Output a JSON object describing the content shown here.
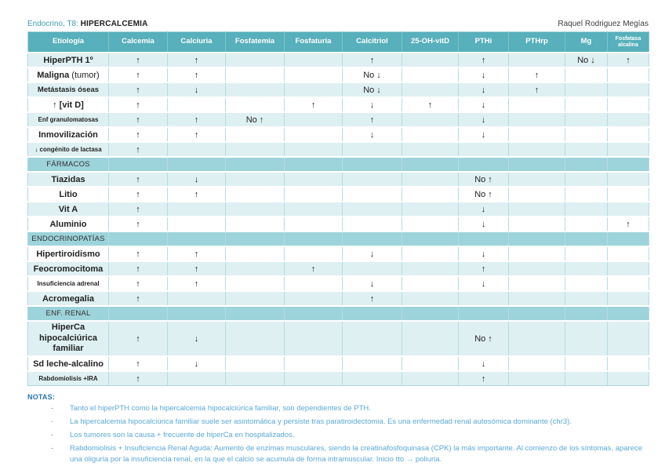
{
  "header": {
    "course": "Endocrino, T8:",
    "topic": "HIPERCALCEMIA",
    "author": "Raquel Rodriguez Megías"
  },
  "table": {
    "columns": [
      {
        "label": "Etiología"
      },
      {
        "label": "Calcemia"
      },
      {
        "label": "Calciuria"
      },
      {
        "label": "Fosfatemia"
      },
      {
        "label": "Fosfaturia"
      },
      {
        "label": "Calcitriol"
      },
      {
        "label": "25-OH-vitD"
      },
      {
        "label": "PTHi"
      },
      {
        "label": "PTHrp"
      },
      {
        "label": "Mg"
      },
      {
        "label": "Fosfatasa alcalina",
        "small": true
      }
    ],
    "rows": [
      {
        "type": "data",
        "label": "HiperPTH 1º",
        "cells": [
          "↑",
          "↑",
          "",
          "",
          "↑",
          "",
          "↑",
          "",
          "No ↓",
          "↑"
        ]
      },
      {
        "type": "data",
        "label": "Maligna",
        "suffix": " (tumor)",
        "cells": [
          "↑",
          "↑",
          "",
          "",
          "No ↓",
          "",
          "↓",
          "↑",
          "",
          ""
        ]
      },
      {
        "type": "data",
        "label": "Metástasis óseas",
        "size": "mid",
        "cells": [
          "↑",
          "↓",
          "",
          "",
          "No ↓",
          "",
          "↓",
          "↑",
          "",
          ""
        ]
      },
      {
        "type": "data",
        "label": "↑ [vit D]",
        "cells": [
          "↑",
          "",
          "",
          "↑",
          "↓",
          "↑",
          "↓",
          "",
          "",
          ""
        ]
      },
      {
        "type": "data",
        "label": "Enf granulomatosas",
        "size": "small",
        "cells": [
          "↑",
          "↑",
          "No ↑",
          "",
          "↑",
          "",
          "↓",
          "",
          "",
          ""
        ]
      },
      {
        "type": "data",
        "label": "Inmovilización",
        "cells": [
          "↑",
          "↑",
          "",
          "",
          "↓",
          "",
          "↓",
          "",
          "",
          ""
        ]
      },
      {
        "type": "data",
        "label": "↓ congénito de lactasa",
        "size": "small",
        "cells": [
          "↑",
          "",
          "",
          "",
          "",
          "",
          "",
          "",
          "",
          ""
        ]
      },
      {
        "type": "section",
        "label": "FÁRMACOS"
      },
      {
        "type": "data",
        "label": "Tiazidas",
        "cells": [
          "↑",
          "↓",
          "",
          "",
          "",
          "",
          "No ↑",
          "",
          "",
          ""
        ]
      },
      {
        "type": "data",
        "label": "Litio",
        "cells": [
          "↑",
          "↑",
          "",
          "",
          "",
          "",
          "No ↑",
          "",
          "",
          ""
        ]
      },
      {
        "type": "data",
        "label": "Vit A",
        "cells": [
          "↑",
          "",
          "",
          "",
          "",
          "",
          "↓",
          "",
          "",
          ""
        ]
      },
      {
        "type": "data",
        "label": "Aluminio",
        "cells": [
          "↑",
          "",
          "",
          "",
          "",
          "",
          "↓",
          "",
          "",
          "↑"
        ]
      },
      {
        "type": "section",
        "label": "ENDOCRINOPATÍAS"
      },
      {
        "type": "data",
        "label": "Hipertiroidismo",
        "cells": [
          "↑",
          "↑",
          "",
          "",
          "↓",
          "",
          "↓",
          "",
          "",
          ""
        ]
      },
      {
        "type": "data",
        "label": "Feocromocitoma",
        "cells": [
          "↑",
          "↑",
          "",
          "↑",
          "",
          "",
          "↑",
          "",
          "",
          ""
        ]
      },
      {
        "type": "data",
        "label": "Insuficiencia adrenal",
        "size": "small",
        "cells": [
          "↑",
          "↑",
          "",
          "",
          "↓",
          "",
          "↓",
          "",
          "",
          ""
        ]
      },
      {
        "type": "data",
        "label": "Acromegalia",
        "cells": [
          "↑",
          "",
          "",
          "",
          "↑",
          "",
          "",
          "",
          "",
          ""
        ]
      },
      {
        "type": "section",
        "label": "ENF. RENAL"
      },
      {
        "type": "data",
        "label": "HiperCa hipocalciúrica familiar",
        "tall": true,
        "cells": [
          "↑",
          "↓",
          "",
          "",
          "",
          "",
          "No ↑",
          "",
          "",
          ""
        ]
      },
      {
        "type": "data",
        "label": "Sd leche-alcalino",
        "cells": [
          "↑",
          "↓",
          "",
          "",
          "",
          "",
          "↓",
          "",
          "",
          ""
        ]
      },
      {
        "type": "data",
        "label": "Rabdomiolisis +IRA",
        "size": "small",
        "cells": [
          "↑",
          "",
          "",
          "",
          "",
          "",
          "↑",
          "",
          "",
          ""
        ]
      }
    ]
  },
  "notes": {
    "title": "NOTAS:",
    "items": [
      "Tanto el hiperPTH como la hipercalcemia hipocalciúrica familiar, son dependientes de PTH.",
      "La hipercalcemia hipocalciúrica familiar suele ser asintomática y persiste tras paratiroidectomia. Es una enfermedad renal autosómica dominante (chr3).",
      "Los tumores son la causa + frecuente de hiperCa en hospitalizados.",
      "Rabdomiolisis + Insuficiencia Renal Aguda: Aumento de enzimas musculares, siendo la creatinafosfoquinasa (CPK) la más importante. Al comienzo de los síntomas, aparece una oliguria por la insuficiencia renal, en la que el calcio se acumula de forma intramuscular. Inicio tto → poliuria."
    ]
  }
}
